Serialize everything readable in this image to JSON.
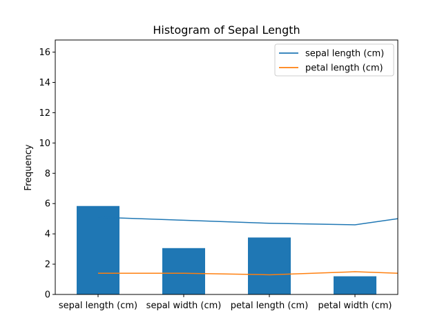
{
  "chart_data": {
    "type": "bar",
    "title": "Histogram of Sepal Length",
    "xlabel": "",
    "ylabel": "Frequency",
    "categories": [
      "sepal length (cm)",
      "sepal width (cm)",
      "petal length (cm)",
      "petal width (cm)"
    ],
    "bars": {
      "values": [
        5.84,
        3.06,
        3.76,
        1.2
      ],
      "color": "#1f77b4"
    },
    "series": [
      {
        "name": "sepal length (cm)",
        "type": "line",
        "color": "#1f77b4",
        "x": [
          0,
          1,
          2,
          3,
          3.5
        ],
        "values": [
          5.1,
          4.9,
          4.7,
          4.6,
          5.0
        ]
      },
      {
        "name": "petal length (cm)",
        "type": "line",
        "color": "#ff7f0e",
        "x": [
          0,
          1,
          2,
          3,
          3.5
        ],
        "values": [
          1.4,
          1.4,
          1.3,
          1.5,
          1.4
        ]
      }
    ],
    "xlim": [
      -0.5,
      3.5
    ],
    "ylim": [
      0,
      16.8
    ],
    "yticks": [
      0,
      2,
      4,
      6,
      8,
      10,
      12,
      14,
      16
    ],
    "grid": false,
    "legend_position": "top-right"
  }
}
